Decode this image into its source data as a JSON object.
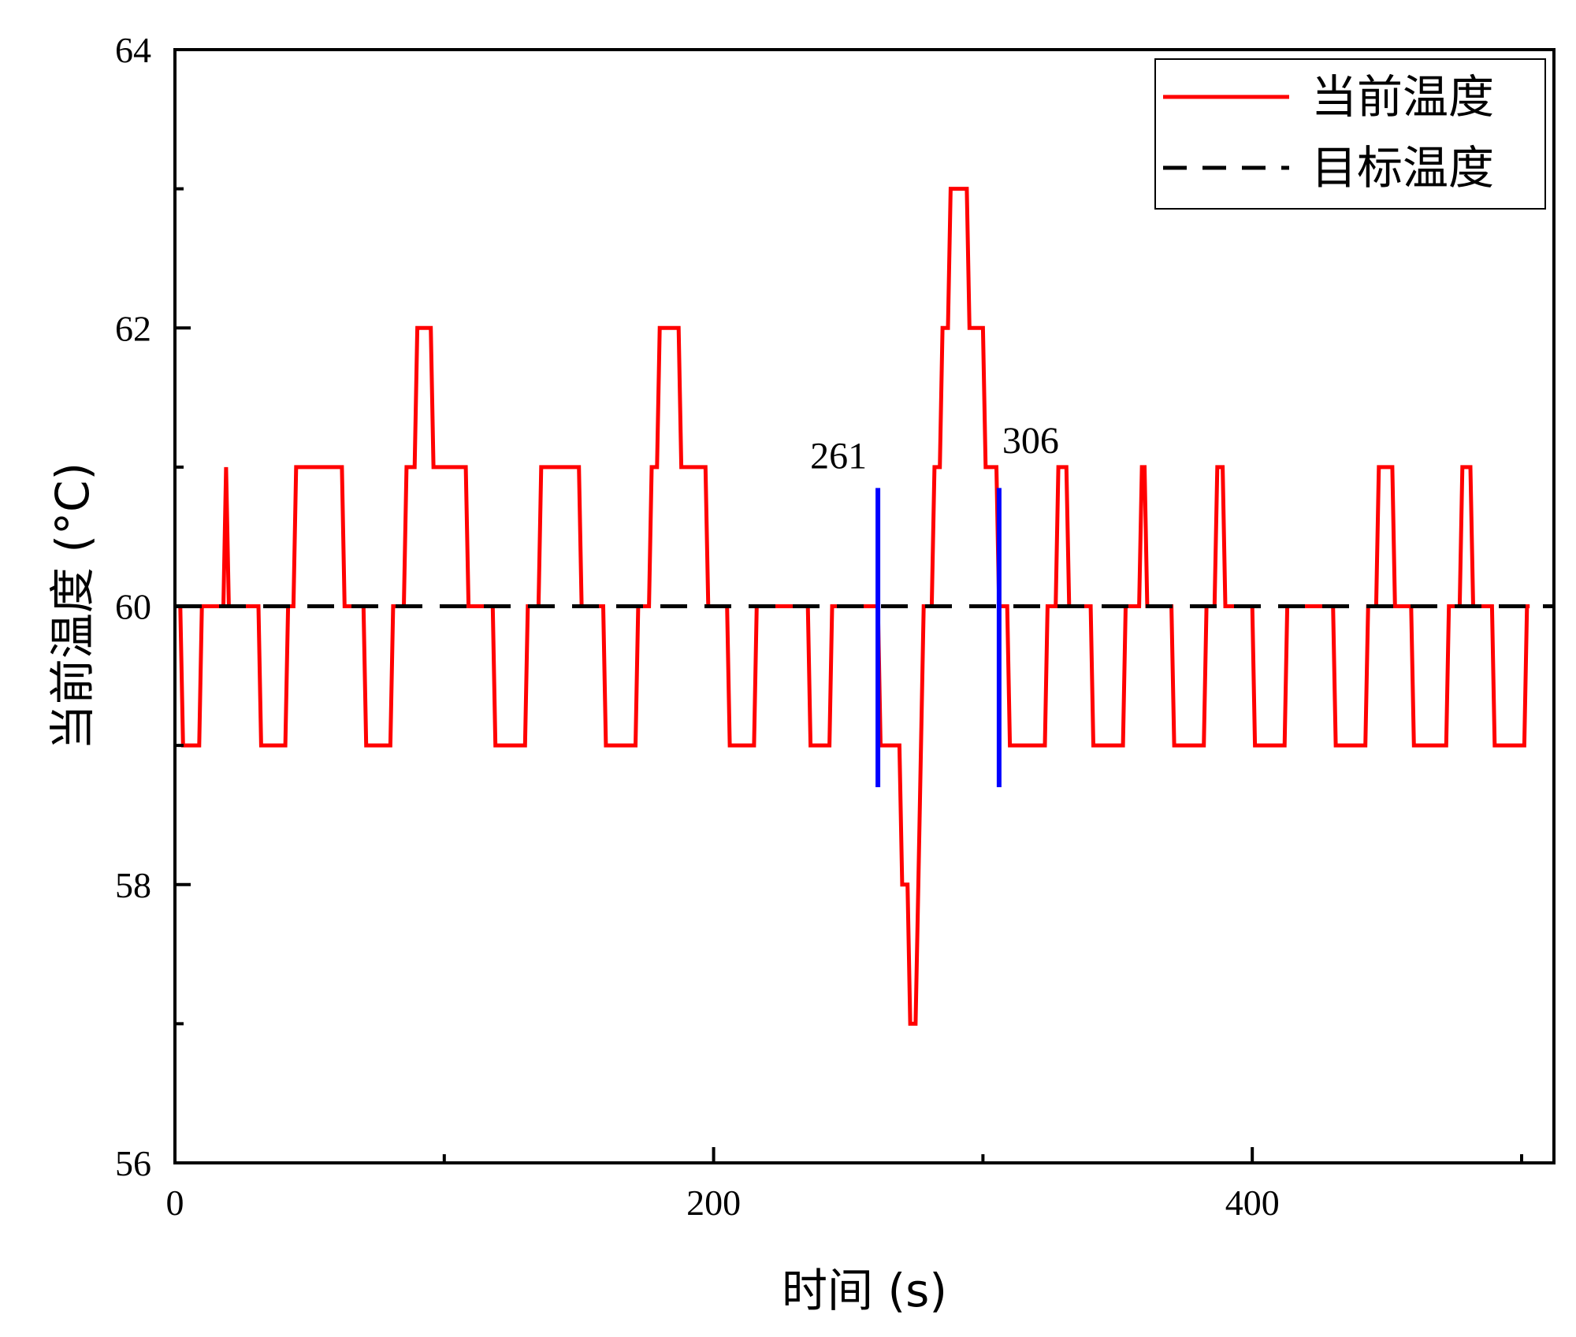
{
  "chart_data": {
    "type": "line",
    "xlabel": "时间 (s)",
    "ylabel": "当前温度 (°C)",
    "xlim": [
      0,
      512
    ],
    "ylim": [
      56,
      64
    ],
    "xticks": [
      0,
      200,
      400
    ],
    "xminor_ticks": [
      100,
      300,
      500
    ],
    "yticks": [
      56,
      58,
      60,
      62,
      64
    ],
    "yminor_ticks": [
      57,
      59,
      61,
      63
    ],
    "grid": false,
    "legend_position": "top-right",
    "series": [
      {
        "name": "当前温度",
        "color": "#ff0000",
        "style": "solid",
        "points": [
          [
            2,
            60
          ],
          [
            3,
            59
          ],
          [
            9,
            59
          ],
          [
            10,
            60
          ],
          [
            18,
            60
          ],
          [
            19,
            61
          ],
          [
            20,
            60
          ],
          [
            31,
            60
          ],
          [
            32,
            59
          ],
          [
            41,
            59
          ],
          [
            42,
            60
          ],
          [
            44,
            60
          ],
          [
            45,
            61
          ],
          [
            62,
            61
          ],
          [
            63,
            60
          ],
          [
            70,
            60
          ],
          [
            71,
            59
          ],
          [
            80,
            59
          ],
          [
            81,
            60
          ],
          [
            85,
            60
          ],
          [
            86,
            61
          ],
          [
            89,
            61
          ],
          [
            90,
            62
          ],
          [
            95,
            62
          ],
          [
            96,
            61
          ],
          [
            108,
            61
          ],
          [
            109,
            60
          ],
          [
            118,
            60
          ],
          [
            119,
            59
          ],
          [
            130,
            59
          ],
          [
            131,
            60
          ],
          [
            135,
            60
          ],
          [
            136,
            61
          ],
          [
            150,
            61
          ],
          [
            151,
            60
          ],
          [
            159,
            60
          ],
          [
            160,
            59
          ],
          [
            171,
            59
          ],
          [
            172,
            60
          ],
          [
            176,
            60
          ],
          [
            177,
            61
          ],
          [
            179,
            61
          ],
          [
            180,
            62
          ],
          [
            187,
            62
          ],
          [
            188,
            61
          ],
          [
            197,
            61
          ],
          [
            198,
            60
          ],
          [
            205,
            60
          ],
          [
            206,
            59
          ],
          [
            215,
            59
          ],
          [
            216,
            60
          ],
          [
            235,
            60
          ],
          [
            236,
            59
          ],
          [
            243,
            59
          ],
          [
            244,
            60
          ],
          [
            261,
            60
          ],
          [
            262,
            59
          ],
          [
            269,
            59
          ],
          [
            270,
            58
          ],
          [
            272,
            58
          ],
          [
            273,
            57
          ],
          [
            275,
            57
          ],
          [
            276,
            58
          ],
          [
            277,
            59
          ],
          [
            278,
            60
          ],
          [
            281,
            60
          ],
          [
            282,
            61
          ],
          [
            284,
            61
          ],
          [
            285,
            62
          ],
          [
            287,
            62
          ],
          [
            288,
            63
          ],
          [
            294,
            63
          ],
          [
            295,
            62
          ],
          [
            300,
            62
          ],
          [
            301,
            61
          ],
          [
            305,
            61
          ],
          [
            306,
            60
          ],
          [
            309,
            60
          ],
          [
            310,
            59
          ],
          [
            323,
            59
          ],
          [
            324,
            60
          ],
          [
            327,
            60
          ],
          [
            328,
            61
          ],
          [
            331,
            61
          ],
          [
            332,
            60
          ],
          [
            340,
            60
          ],
          [
            341,
            59
          ],
          [
            352,
            59
          ],
          [
            353,
            60
          ],
          [
            358,
            60
          ],
          [
            359,
            61
          ],
          [
            360,
            61
          ],
          [
            361,
            60
          ],
          [
            370,
            60
          ],
          [
            371,
            59
          ],
          [
            382,
            59
          ],
          [
            383,
            60
          ],
          [
            386,
            60
          ],
          [
            387,
            61
          ],
          [
            389,
            61
          ],
          [
            390,
            60
          ],
          [
            400,
            60
          ],
          [
            401,
            59
          ],
          [
            412,
            59
          ],
          [
            413,
            60
          ],
          [
            430,
            60
          ],
          [
            431,
            59
          ],
          [
            442,
            59
          ],
          [
            443,
            60
          ],
          [
            446,
            60
          ],
          [
            447,
            61
          ],
          [
            452,
            61
          ],
          [
            453,
            60
          ],
          [
            459,
            60
          ],
          [
            460,
            59
          ],
          [
            472,
            59
          ],
          [
            473,
            60
          ],
          [
            477,
            60
          ],
          [
            478,
            61
          ],
          [
            481,
            61
          ],
          [
            482,
            60
          ],
          [
            489,
            60
          ],
          [
            490,
            59
          ],
          [
            501,
            59
          ],
          [
            502,
            60
          ],
          [
            503,
            60
          ]
        ]
      },
      {
        "name": "目标温度",
        "color": "#000000",
        "style": "dashed",
        "points": [
          [
            0,
            60
          ],
          [
            512,
            60
          ]
        ]
      }
    ],
    "markers": [
      {
        "x": 261,
        "label": "261",
        "color": "#0000ff",
        "y_range": [
          58.7,
          60.85
        ]
      },
      {
        "x": 306,
        "label": "306",
        "color": "#0000ff",
        "y_range": [
          58.7,
          60.85
        ]
      }
    ]
  }
}
